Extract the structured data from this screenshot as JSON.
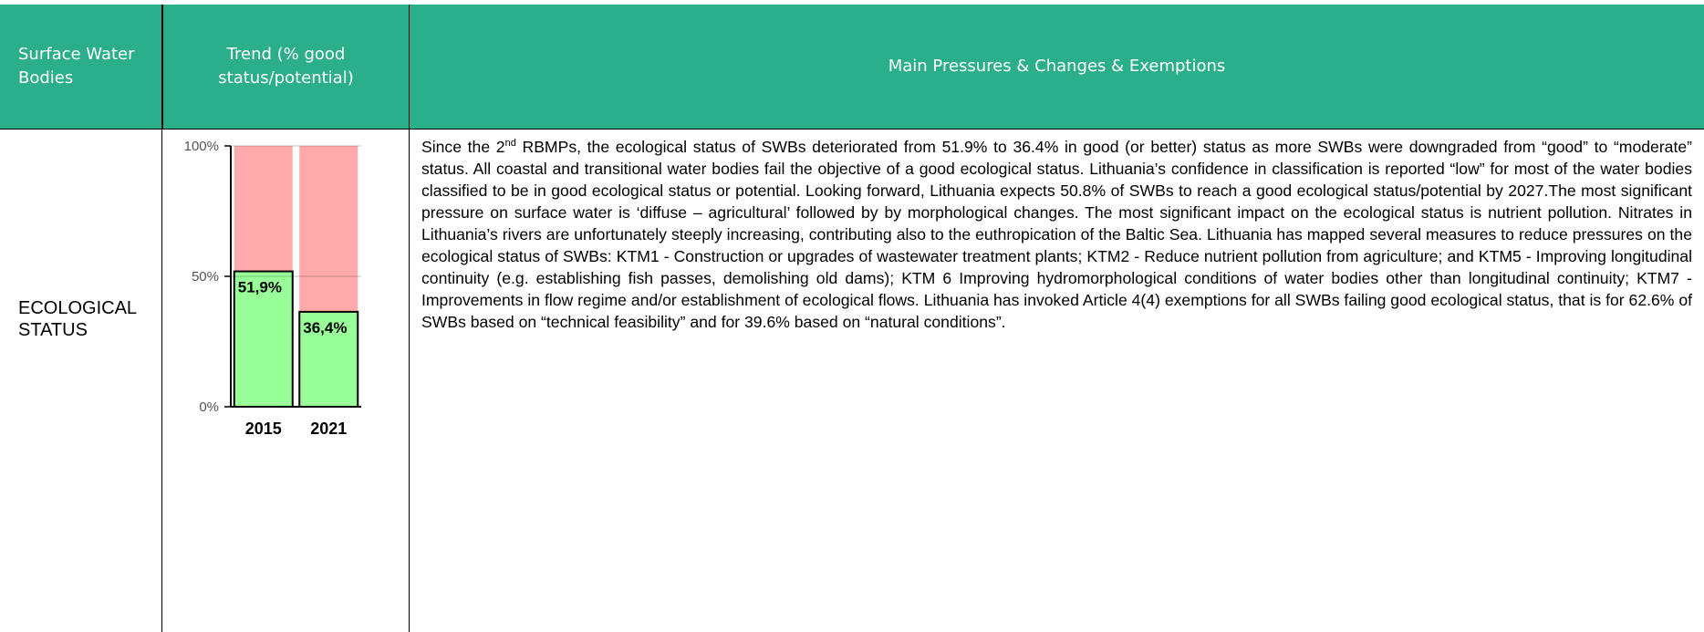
{
  "table": {
    "header": [
      "Surface Water Bodies",
      "Trend (% good status/potential)",
      "Main Pressures & Changes & Exemptions"
    ],
    "rows": [
      {
        "label": "ECOLOGICAL STATUS",
        "text": [
          "Since the 2",
          "nd",
          " RBMPs, the ecological status of SWBs deteriorated from 51.9% to 36.4% in good (or better) status as more SWBs were downgraded from “good” to “moderate” status. All coastal and transitional water bodies fail the objective of a good ecological status. Lithuania’s confidence in classification is reported “low” for most of the water bodies classified to be in good ecological status or potential. Looking forward, Lithuania expects 50.8% of SWBs to reach a good ecological status/potential by 2027.The most significant pressure on surface water is ‘diffuse – agricultural’ followed by by morphological changes. The most significant impact on the ecological status is nutrient pollution. Nitrates in Lithuania’s rivers are unfortunately steeply increasing, contributing also to the euthropication of the Baltic Sea. Lithuania has mapped several measures to reduce pressures on the ecological status of SWBs: KTM1 - Construction or upgrades of wastewater treatment plants; KTM2 - Reduce nutrient pollution from agriculture; and KTM5 - Improving longitudinal continuity (e.g. establishing fish passes, demolishing old dams); KTM 6 Improving hydromorphological conditions of water bodies other than longitudinal continuity; KTM7 - Improvements in flow regime and/or establishment of ecological flows. Lithuania has invoked Article 4(4) exemptions for all SWBs failing good ecological status, that is for 62.6% of SWBs based on “technical feasibility” and for 39.6% based on “natural conditions”."
        ]
      }
    ]
  },
  "chart_data": {
    "type": "bar",
    "categories": [
      "2015",
      "2021"
    ],
    "values": [
      51.9,
      36.4
    ],
    "value_labels": [
      "51,9%",
      "36,4%"
    ],
    "color": "#99ff99",
    "background_color": "#ffaaaa",
    "ylim": [
      0,
      100
    ],
    "yticks": [
      {
        "value": 0,
        "label": "0%"
      },
      {
        "value": 50,
        "label": "50%"
      },
      {
        "value": 100,
        "label": "100%"
      }
    ],
    "grid": true
  }
}
